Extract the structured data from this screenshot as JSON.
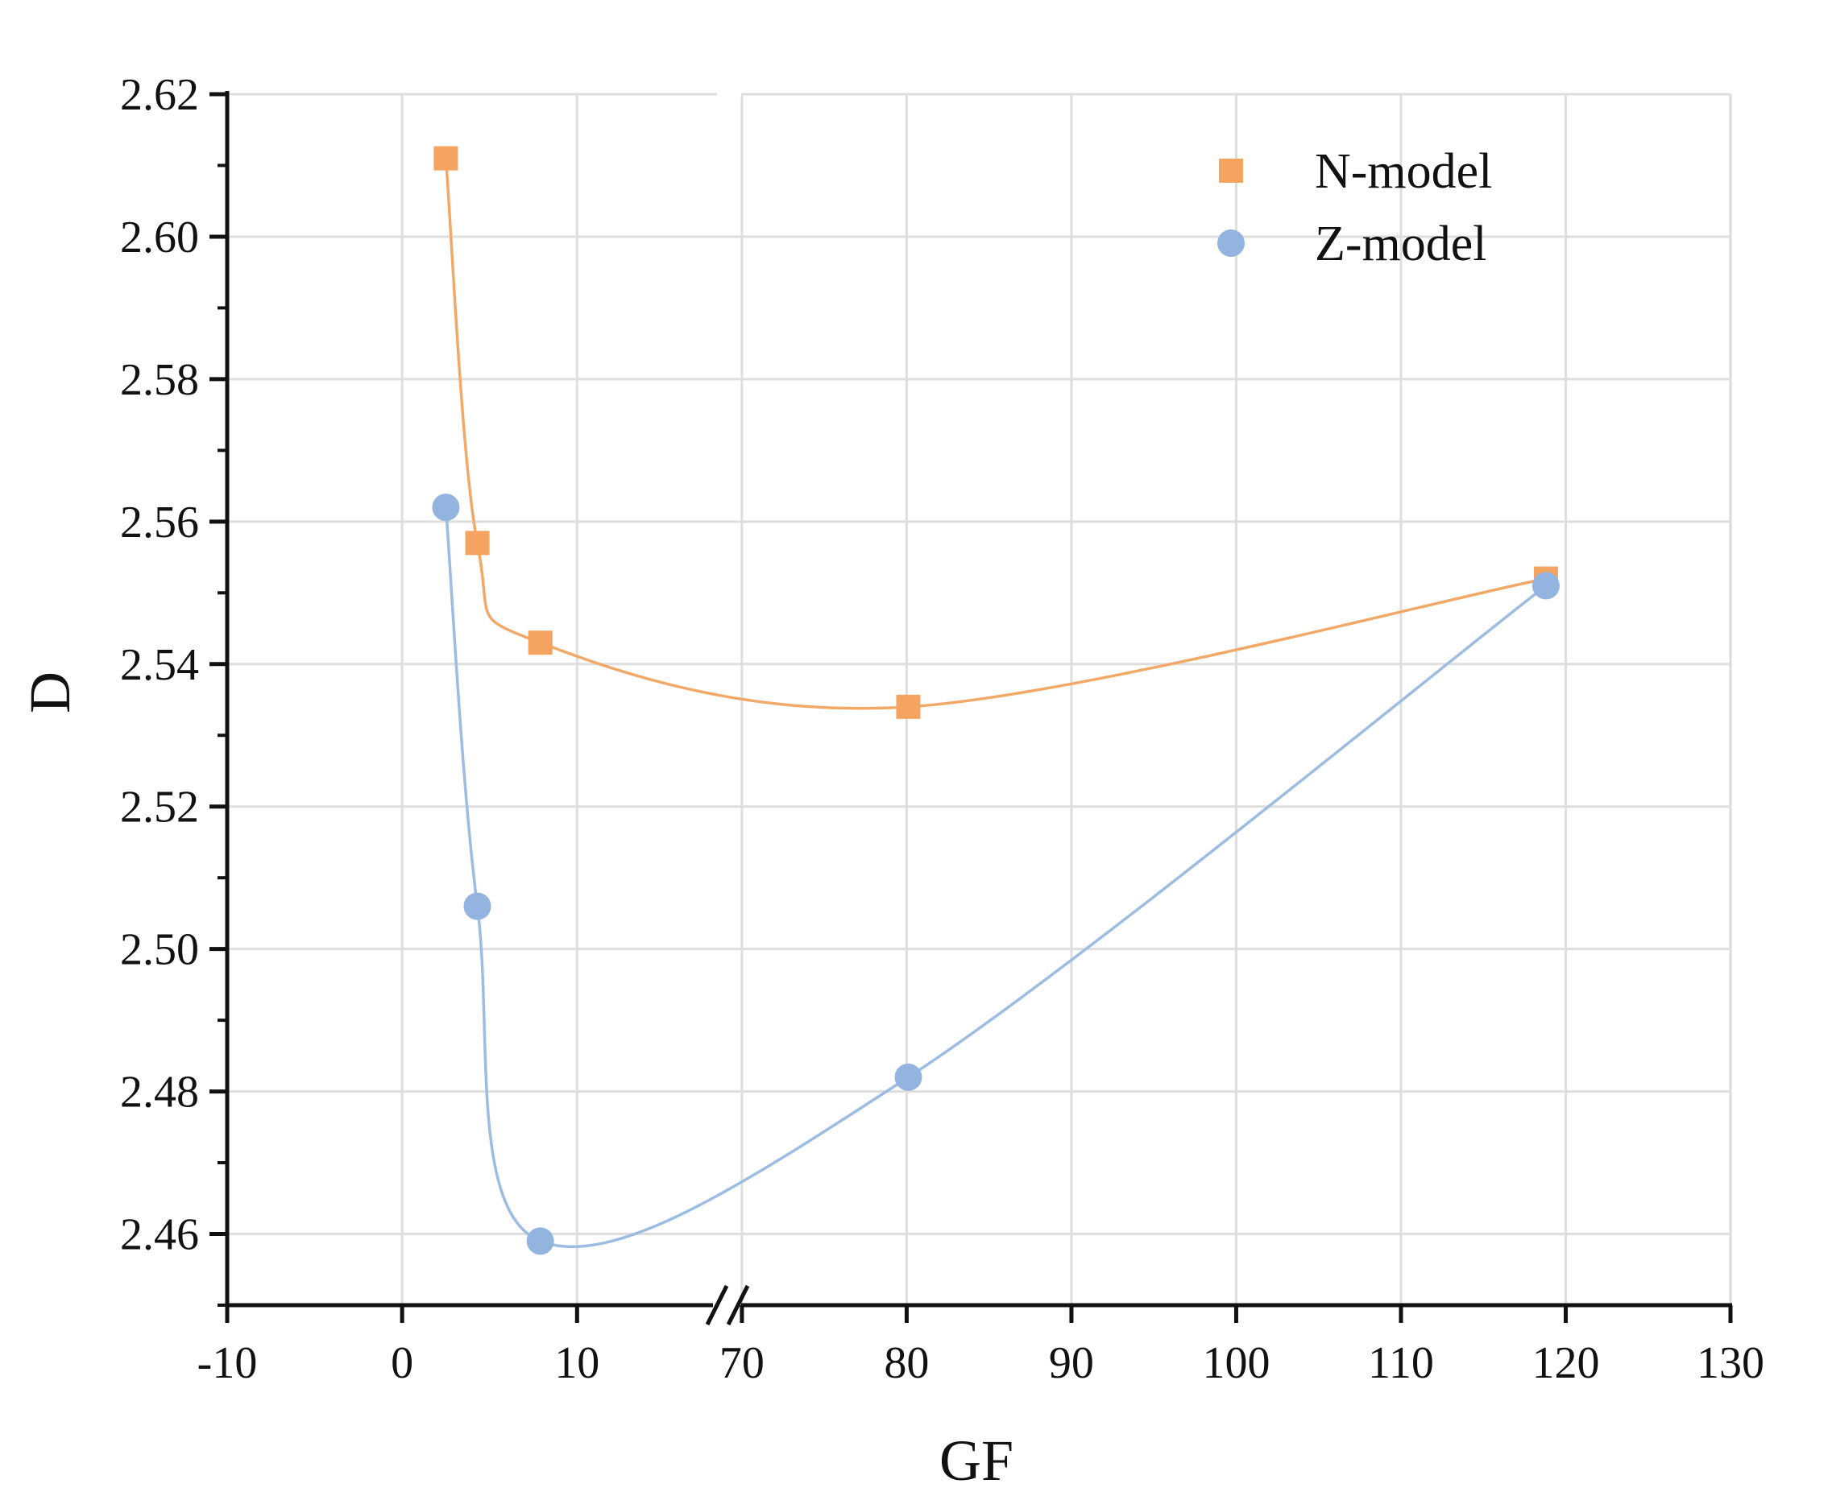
{
  "chart_data": {
    "type": "line",
    "xlabel": "GF",
    "ylabel": "D",
    "x_axis": {
      "segments": [
        {
          "range": [
            -10,
            18
          ],
          "ticks": [
            -10,
            0,
            10
          ]
        },
        {
          "range": [
            68,
            130
          ],
          "ticks": [
            70,
            80,
            90,
            100,
            110,
            120,
            130
          ]
        }
      ],
      "tick_labels": [
        "-10",
        "0",
        "10",
        "70",
        "80",
        "90",
        "100",
        "110",
        "120",
        "130"
      ],
      "break": true
    },
    "y_axis": {
      "range": [
        2.45,
        2.62
      ],
      "ticks": [
        2.46,
        2.48,
        2.5,
        2.52,
        2.54,
        2.56,
        2.58,
        2.6,
        2.62
      ],
      "tick_labels": [
        "2.46",
        "2.48",
        "2.50",
        "2.52",
        "2.54",
        "2.56",
        "2.58",
        "2.60",
        "2.62"
      ]
    },
    "grid": true,
    "legend_position": "top-right",
    "series": [
      {
        "name": "N-model",
        "marker": "square",
        "color": "#F4A460",
        "line_color": "#F2A968",
        "x": [
          2.5,
          4.3,
          7.9,
          80.1,
          118.8
        ],
        "y": [
          2.611,
          2.557,
          2.543,
          2.534,
          2.552
        ]
      },
      {
        "name": "Z-model",
        "marker": "circle",
        "color": "#92B4DE",
        "line_color": "#9DBCE2",
        "x": [
          2.5,
          4.3,
          7.9,
          80.1,
          118.8
        ],
        "y": [
          2.562,
          2.506,
          2.459,
          2.482,
          2.551
        ]
      }
    ]
  }
}
